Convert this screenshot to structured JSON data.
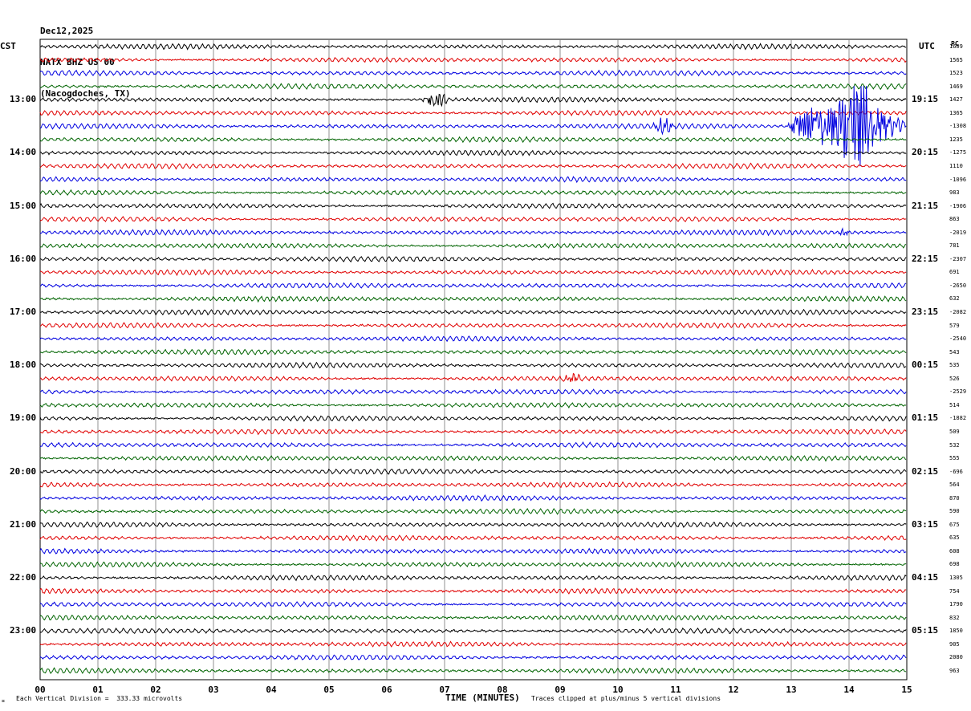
{
  "header": {
    "date": "Dec12,2025",
    "station": "NATX BHZ US 00",
    "location": "(Nacogdoches, TX)"
  },
  "corner": {
    "left": "CST",
    "right": "UTC",
    "far_right": "PC"
  },
  "footer": {
    "division_note": "Each Vertical Division =  333.33 microvolts",
    "clip_note": "Traces clipped at plus/minus 5 vertical divisions",
    "x_label": "TIME (MINUTES)"
  },
  "chart_data": {
    "type": "line",
    "title": "",
    "xlabel": "TIME (MINUTES)",
    "ylabel": "",
    "x_ticks": [
      "00",
      "01",
      "02",
      "03",
      "04",
      "05",
      "06",
      "07",
      "08",
      "09",
      "10",
      "11",
      "12",
      "13",
      "14",
      "15"
    ],
    "xlim": [
      0,
      15
    ],
    "grid": true,
    "trace_colors": [
      "#000000",
      "#e00000",
      "#0000e0",
      "#006400"
    ],
    "left_time_labels": [
      "13:00",
      "14:00",
      "15:00",
      "16:00",
      "17:00",
      "18:00",
      "19:00",
      "20:00",
      "21:00",
      "22:00",
      "23:00"
    ],
    "right_time_labels": [
      "19:15",
      "20:15",
      "21:15",
      "22:15",
      "23:15",
      "00:15",
      "01:15",
      "02:15",
      "03:15",
      "04:15",
      "05:15"
    ],
    "right_counts": [
      "1609",
      "1565",
      "1523",
      "1469",
      "1427",
      "1365",
      "-1308",
      "1235",
      "-1275",
      "1110",
      "-1096",
      "983",
      "-1906",
      "863",
      "-2019",
      "781",
      "-2307",
      "691",
      "-2650",
      "632",
      "-2082",
      "579",
      "-2540",
      "543",
      "535",
      "526",
      "-2529",
      "514",
      "-1882",
      "509",
      "532",
      "555",
      "-696",
      "564",
      "870",
      "590",
      "675",
      "635",
      "608",
      "698",
      "1305",
      "754",
      "1790",
      "832",
      "1850",
      "905",
      "2080",
      "963"
    ],
    "events": [
      {
        "row": 4,
        "start_min": 6.6,
        "end_min": 7.1,
        "amplitude": "moderate"
      },
      {
        "row": 6,
        "start_min": 10.6,
        "end_min": 11.0,
        "amplitude": "moderate"
      },
      {
        "row": 6,
        "start_min": 12.9,
        "end_min": 15.0,
        "amplitude": "large"
      },
      {
        "row": 14,
        "start_min": 13.8,
        "end_min": 14.0,
        "amplitude": "small"
      },
      {
        "row": 25,
        "start_min": 9.0,
        "end_min": 9.4,
        "amplitude": "small"
      }
    ]
  }
}
